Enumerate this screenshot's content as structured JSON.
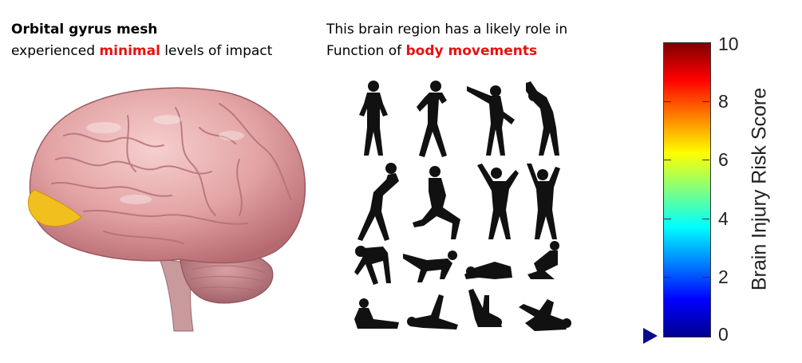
{
  "left_caption": {
    "region_name": "Orbital gyrus mesh",
    "line2_prefix": "experienced ",
    "impact_level": "minimal",
    "line2_suffix": " levels of impact"
  },
  "middle_caption": {
    "line1": "This brain region has a likely role in",
    "line2_prefix": "Function of ",
    "function": "body movements"
  },
  "colorbar": {
    "title": "Brain Injury Risk Score",
    "min": 0,
    "max": 10,
    "ticks": [
      "0",
      "2",
      "4",
      "6",
      "8",
      "10"
    ],
    "marker_value": 0,
    "marker_color": "#0b0b8a"
  },
  "colors": {
    "highlight": "#e8110f",
    "brain_tissue": "#e8a9a8",
    "highlighted_region": "#f2c01e",
    "silhouette": "#111111"
  },
  "icons": {
    "brain": "brain-illustration",
    "figures": "exercise-silhouettes"
  }
}
